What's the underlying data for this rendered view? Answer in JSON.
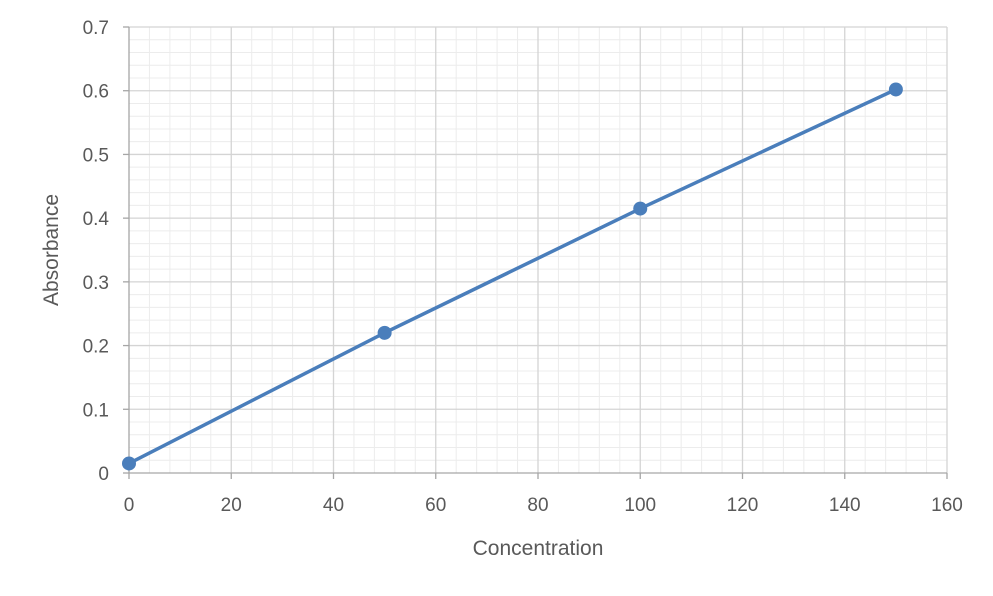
{
  "chart_data": {
    "type": "line",
    "title": "",
    "xlabel": "Concentration",
    "ylabel": "Absorbance",
    "xlim": [
      0,
      160
    ],
    "ylim": [
      0,
      0.7
    ],
    "x_ticks": [
      "0",
      "20",
      "40",
      "60",
      "80",
      "100",
      "120",
      "140",
      "160"
    ],
    "y_ticks": [
      "0",
      "0.1",
      "0.2",
      "0.3",
      "0.4",
      "0.5",
      "0.6",
      "0.7"
    ],
    "grid": true,
    "minor_grid": true,
    "legend": "none",
    "series": [
      {
        "x": [
          0,
          50,
          100,
          150
        ],
        "y": [
          0.015,
          0.22,
          0.415,
          0.602
        ],
        "color": "#4a7ebb",
        "marker": "circle"
      }
    ]
  }
}
